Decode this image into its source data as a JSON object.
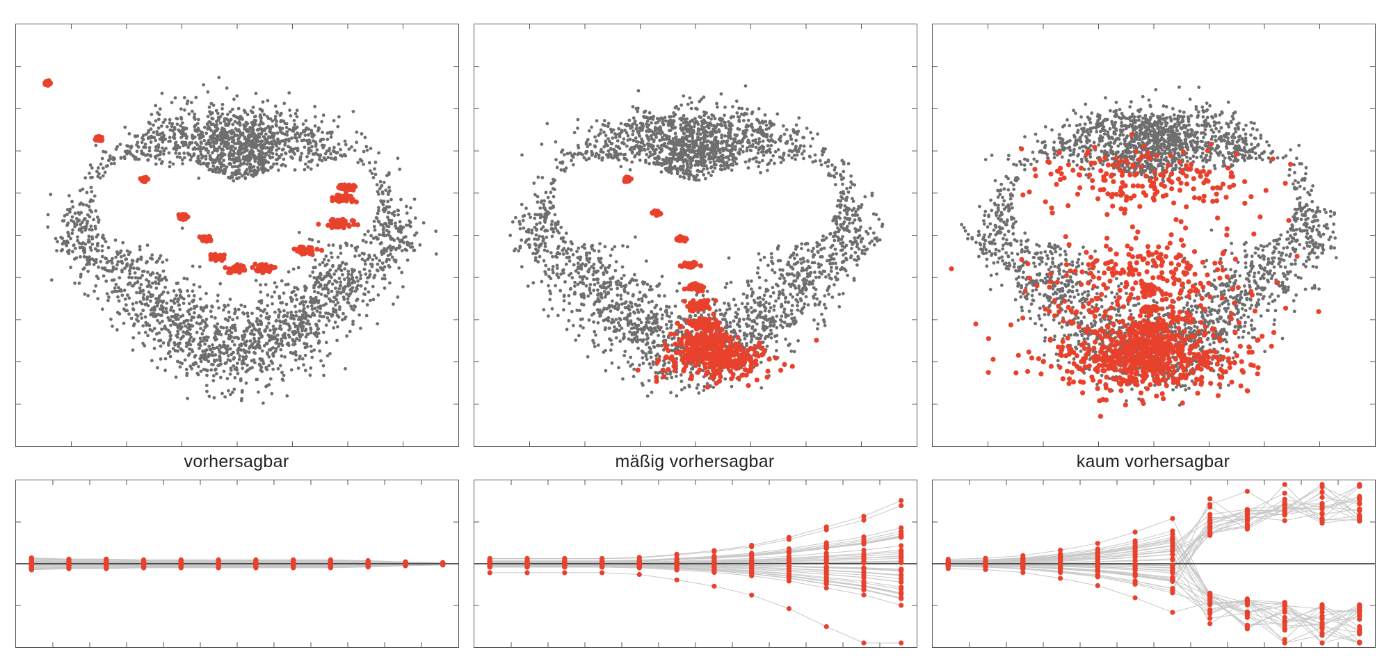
{
  "colors": {
    "background_points": "#6e6e6e",
    "highlight_points": "#e8412c",
    "trajectory_lines": "#c8c8c8",
    "zero_line": "#222222",
    "frame": "#555555"
  },
  "chart_data": [
    {
      "type": "scatter",
      "title": "vorhersagbar",
      "description_text": "",
      "xlim": [
        0,
        8
      ],
      "ylim": [
        0,
        10
      ],
      "grid": false,
      "attractor": "butterfly-shaped point cloud (gray)",
      "highlight_clusters": [
        {
          "x": 0.1,
          "y": 9.1,
          "spread": 0.1
        },
        {
          "x": 1.15,
          "y": 7.6,
          "spread": 0.1
        },
        {
          "x": 2.1,
          "y": 6.5,
          "spread": 0.1
        },
        {
          "x": 2.9,
          "y": 5.5,
          "spread": 0.12
        },
        {
          "x": 3.35,
          "y": 4.9,
          "spread": 0.15
        },
        {
          "x": 3.6,
          "y": 4.4,
          "spread": 0.2
        },
        {
          "x": 4.0,
          "y": 4.1,
          "spread": 0.25
        },
        {
          "x": 4.55,
          "y": 4.1,
          "spread": 0.3
        },
        {
          "x": 5.4,
          "y": 4.6,
          "spread": 0.35
        },
        {
          "x": 6.1,
          "y": 5.3,
          "spread": 0.4
        },
        {
          "x": 6.15,
          "y": 6.0,
          "spread": 0.3
        },
        {
          "x": 6.25,
          "y": 6.3,
          "spread": 0.25
        }
      ]
    },
    {
      "type": "scatter",
      "title": "mäßig vorhersagbar",
      "xlim": [
        0,
        8
      ],
      "ylim": [
        0,
        10
      ],
      "grid": false,
      "attractor": "butterfly-shaped point cloud (gray)",
      "highlight_clusters": [
        {
          "x": 2.6,
          "y": 6.5,
          "spread": 0.12
        },
        {
          "x": 3.2,
          "y": 5.6,
          "spread": 0.12
        },
        {
          "x": 3.7,
          "y": 4.9,
          "spread": 0.15
        },
        {
          "x": 3.9,
          "y": 4.2,
          "spread": 0.2
        },
        {
          "x": 4.0,
          "y": 3.6,
          "spread": 0.3
        },
        {
          "x": 4.05,
          "y": 3.1,
          "spread": 0.45
        },
        {
          "x": 4.1,
          "y": 2.6,
          "spread": 0.65
        },
        {
          "x": 4.2,
          "y": 2.2,
          "spread": 0.9
        },
        {
          "x": 4.3,
          "y": 1.9,
          "spread": 1.2
        },
        {
          "x": 4.4,
          "y": 1.7,
          "spread": 1.6
        },
        {
          "x": 4.5,
          "y": 1.6,
          "spread": 2.0
        }
      ]
    },
    {
      "type": "scatter",
      "title": "kaum vorhersagbar",
      "xlim": [
        0,
        8
      ],
      "ylim": [
        0,
        10
      ],
      "grid": false,
      "attractor": "butterfly-shaped point cloud (gray)",
      "highlight_clusters": [
        {
          "x": 3.9,
          "y": 3.6,
          "spread": 0.15
        },
        {
          "x": 3.9,
          "y": 3.0,
          "spread": 0.3
        },
        {
          "x": 3.9,
          "y": 2.5,
          "spread": 0.6
        },
        {
          "x": 3.85,
          "y": 2.0,
          "spread": 1.2
        },
        {
          "x": 3.8,
          "y": 1.6,
          "spread": 2.0
        },
        {
          "x": 3.8,
          "y": 1.4,
          "spread": 2.8
        },
        {
          "x": 3.8,
          "y": 1.7,
          "spread": 3.3
        },
        {
          "x": 3.8,
          "y": 2.5,
          "spread": 3.6
        },
        {
          "x": 3.8,
          "y": 4.0,
          "spread": 3.7
        },
        {
          "x": 3.8,
          "y": 6.5,
          "spread": 3.7
        }
      ]
    },
    {
      "type": "line",
      "title": "",
      "x": [
        0,
        1,
        2,
        3,
        4,
        5,
        6,
        7,
        8,
        9,
        10,
        11
      ],
      "ylim": [
        -2.2,
        2.2
      ],
      "grid": false,
      "series_spread": [
        0.15,
        0.12,
        0.12,
        0.1,
        0.1,
        0.1,
        0.1,
        0.1,
        0.1,
        0.08,
        0.05,
        0.03
      ],
      "cluster_counts": [
        6,
        6,
        6,
        6,
        6,
        6,
        6,
        6,
        6,
        6,
        1,
        1
      ],
      "n_trajectories": 40
    },
    {
      "type": "line",
      "title": "",
      "x": [
        0,
        1,
        2,
        3,
        4,
        5,
        6,
        7,
        8,
        9,
        10,
        11
      ],
      "ylim": [
        -2.2,
        2.2
      ],
      "grid": false,
      "series_spread": [
        0.1,
        0.1,
        0.1,
        0.1,
        0.12,
        0.18,
        0.25,
        0.35,
        0.5,
        0.7,
        0.9,
        1.2
      ],
      "n_trajectories": 40
    },
    {
      "type": "line",
      "title": "",
      "x": [
        0,
        1,
        2,
        3,
        4,
        5,
        6,
        7,
        8,
        9,
        10,
        11
      ],
      "ylim": [
        -2.2,
        2.2
      ],
      "grid": false,
      "series_spread": [
        0.1,
        0.12,
        0.18,
        0.3,
        0.45,
        0.7,
        1.0,
        1.35,
        1.65,
        1.8,
        1.9,
        1.95
      ],
      "n_trajectories": 40
    }
  ]
}
